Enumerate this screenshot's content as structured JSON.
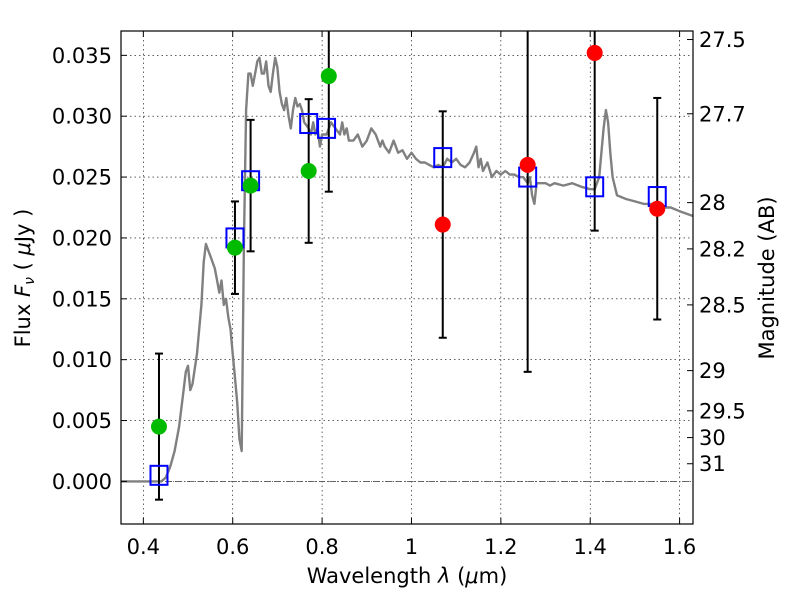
{
  "chart_data": {
    "type": "scatter",
    "xlabel_prefix": "Wavelength",
    "xlabel_symbol": "λ",
    "xlabel_unit_open": "(",
    "xlabel_unit_mu": "μ",
    "xlabel_unit_rest": "m)",
    "ylabel_prefix": "Flux",
    "ylabel_symbol": "F",
    "ylabel_subscript": "ν",
    "ylabel_unit_open": "(",
    "ylabel_unit_mu": "μ",
    "ylabel_unit_rest": "Jy )",
    "y2label": "Magnitude (AB)",
    "xlim": [
      0.35,
      1.63
    ],
    "ylim": [
      -0.0035,
      0.037
    ],
    "grid": true,
    "zero_line": true,
    "x_ticks": [
      {
        "value": 0.4,
        "label": "0.4"
      },
      {
        "value": 0.6,
        "label": "0.6"
      },
      {
        "value": 0.8,
        "label": "0.8"
      },
      {
        "value": 1.0,
        "label": "1"
      },
      {
        "value": 1.2,
        "label": "1.2"
      },
      {
        "value": 1.4,
        "label": "1.4"
      },
      {
        "value": 1.6,
        "label": "1.6"
      }
    ],
    "y_ticks": [
      {
        "value": 0.0,
        "label": "0.000"
      },
      {
        "value": 0.005,
        "label": "0.005"
      },
      {
        "value": 0.01,
        "label": "0.010"
      },
      {
        "value": 0.015,
        "label": "0.015"
      },
      {
        "value": 0.02,
        "label": "0.020"
      },
      {
        "value": 0.025,
        "label": "0.025"
      },
      {
        "value": 0.03,
        "label": "0.030"
      },
      {
        "value": 0.035,
        "label": "0.035"
      }
    ],
    "mag_ticks": [
      {
        "label": "27.5",
        "flux": 0.0363
      },
      {
        "label": "27.7",
        "flux": 0.0302
      },
      {
        "label": "28",
        "flux": 0.0229
      },
      {
        "label": "28.2",
        "flux": 0.0191
      },
      {
        "label": "28.5",
        "flux": 0.0145
      },
      {
        "label": "29",
        "flux": 0.0091
      },
      {
        "label": "29.5",
        "flux": 0.0058
      },
      {
        "label": "30",
        "flux": 0.0036
      },
      {
        "label": "31",
        "flux": 0.00145
      }
    ],
    "model_spectrum": {
      "color": "#808080",
      "points": [
        [
          0.35,
          0.0
        ],
        [
          0.44,
          0.0
        ],
        [
          0.45,
          0.0003
        ],
        [
          0.46,
          0.0012
        ],
        [
          0.47,
          0.0025
        ],
        [
          0.48,
          0.0045
        ],
        [
          0.49,
          0.0075
        ],
        [
          0.495,
          0.009
        ],
        [
          0.5,
          0.0095
        ],
        [
          0.505,
          0.0075
        ],
        [
          0.51,
          0.008
        ],
        [
          0.52,
          0.0105
        ],
        [
          0.53,
          0.0145
        ],
        [
          0.535,
          0.018
        ],
        [
          0.54,
          0.0195
        ],
        [
          0.55,
          0.0185
        ],
        [
          0.56,
          0.0175
        ],
        [
          0.565,
          0.0165
        ],
        [
          0.57,
          0.0155
        ],
        [
          0.575,
          0.0165
        ],
        [
          0.58,
          0.0145
        ],
        [
          0.585,
          0.015
        ],
        [
          0.59,
          0.0135
        ],
        [
          0.595,
          0.0125
        ],
        [
          0.6,
          0.0105
        ],
        [
          0.605,
          0.0085
        ],
        [
          0.61,
          0.0065
        ],
        [
          0.615,
          0.0035
        ],
        [
          0.62,
          0.0025
        ],
        [
          0.625,
          0.0195
        ],
        [
          0.63,
          0.0305
        ],
        [
          0.635,
          0.0335
        ],
        [
          0.64,
          0.0335
        ],
        [
          0.645,
          0.0325
        ],
        [
          0.65,
          0.0335
        ],
        [
          0.655,
          0.0345
        ],
        [
          0.66,
          0.0348
        ],
        [
          0.665,
          0.0335
        ],
        [
          0.67,
          0.0335
        ],
        [
          0.675,
          0.0345
        ],
        [
          0.68,
          0.0325
        ],
        [
          0.685,
          0.032
        ],
        [
          0.69,
          0.0335
        ],
        [
          0.695,
          0.0348
        ],
        [
          0.7,
          0.034
        ],
        [
          0.705,
          0.032
        ],
        [
          0.71,
          0.031
        ],
        [
          0.715,
          0.0305
        ],
        [
          0.72,
          0.0315
        ],
        [
          0.725,
          0.03
        ],
        [
          0.73,
          0.029
        ],
        [
          0.735,
          0.0305
        ],
        [
          0.74,
          0.0315
        ],
        [
          0.745,
          0.0308
        ],
        [
          0.75,
          0.031
        ],
        [
          0.755,
          0.0305
        ],
        [
          0.76,
          0.0295
        ],
        [
          0.77,
          0.029
        ],
        [
          0.775,
          0.0285
        ],
        [
          0.78,
          0.0295
        ],
        [
          0.785,
          0.0285
        ],
        [
          0.79,
          0.029
        ],
        [
          0.795,
          0.0275
        ],
        [
          0.8,
          0.0285
        ],
        [
          0.81,
          0.0285
        ],
        [
          0.82,
          0.0295
        ],
        [
          0.83,
          0.029
        ],
        [
          0.84,
          0.0285
        ],
        [
          0.845,
          0.0295
        ],
        [
          0.85,
          0.0285
        ],
        [
          0.855,
          0.029
        ],
        [
          0.86,
          0.028
        ],
        [
          0.87,
          0.028
        ],
        [
          0.88,
          0.0285
        ],
        [
          0.89,
          0.0275
        ],
        [
          0.9,
          0.028
        ],
        [
          0.91,
          0.029
        ],
        [
          0.92,
          0.0285
        ],
        [
          0.93,
          0.0275
        ],
        [
          0.935,
          0.028
        ],
        [
          0.94,
          0.0275
        ],
        [
          0.95,
          0.027
        ],
        [
          0.96,
          0.028
        ],
        [
          0.97,
          0.027
        ],
        [
          0.98,
          0.0272
        ],
        [
          0.99,
          0.0265
        ],
        [
          1.0,
          0.027
        ],
        [
          1.01,
          0.0265
        ],
        [
          1.02,
          0.0262
        ],
        [
          1.03,
          0.0262
        ],
        [
          1.04,
          0.026
        ],
        [
          1.05,
          0.0258
        ],
        [
          1.06,
          0.026
        ],
        [
          1.07,
          0.0258
        ],
        [
          1.08,
          0.0265
        ],
        [
          1.09,
          0.0262
        ],
        [
          1.1,
          0.0265
        ],
        [
          1.11,
          0.026
        ],
        [
          1.12,
          0.0258
        ],
        [
          1.13,
          0.0262
        ],
        [
          1.14,
          0.027
        ],
        [
          1.145,
          0.0275
        ],
        [
          1.15,
          0.0258
        ],
        [
          1.155,
          0.0265
        ],
        [
          1.16,
          0.0255
        ],
        [
          1.17,
          0.0262
        ],
        [
          1.18,
          0.025
        ],
        [
          1.19,
          0.0255
        ],
        [
          1.2,
          0.0252
        ],
        [
          1.21,
          0.0255
        ],
        [
          1.22,
          0.0252
        ],
        [
          1.23,
          0.0252
        ],
        [
          1.24,
          0.025
        ],
        [
          1.25,
          0.025
        ],
        [
          1.26,
          0.0245
        ],
        [
          1.265,
          0.025
        ],
        [
          1.27,
          0.0235
        ],
        [
          1.275,
          0.0228
        ],
        [
          1.28,
          0.0245
        ],
        [
          1.29,
          0.0245
        ],
        [
          1.3,
          0.0245
        ],
        [
          1.31,
          0.0243
        ],
        [
          1.32,
          0.0245
        ],
        [
          1.34,
          0.0243
        ],
        [
          1.36,
          0.0245
        ],
        [
          1.38,
          0.0242
        ],
        [
          1.4,
          0.024
        ],
        [
          1.41,
          0.024
        ],
        [
          1.42,
          0.025
        ],
        [
          1.425,
          0.027
        ],
        [
          1.43,
          0.029
        ],
        [
          1.435,
          0.0305
        ],
        [
          1.44,
          0.0295
        ],
        [
          1.445,
          0.027
        ],
        [
          1.45,
          0.025
        ],
        [
          1.46,
          0.0235
        ],
        [
          1.48,
          0.0232
        ],
        [
          1.5,
          0.023
        ],
        [
          1.52,
          0.0228
        ],
        [
          1.54,
          0.0228
        ],
        [
          1.56,
          0.0225
        ],
        [
          1.58,
          0.0225
        ],
        [
          1.6,
          0.0222
        ],
        [
          1.63,
          0.0218
        ]
      ]
    },
    "model_photometry": {
      "color": "#0000ff",
      "points": [
        [
          0.435,
          0.0005
        ],
        [
          0.605,
          0.02
        ],
        [
          0.64,
          0.0247
        ],
        [
          0.77,
          0.0294
        ],
        [
          0.81,
          0.029
        ],
        [
          1.07,
          0.0266
        ],
        [
          1.26,
          0.025
        ],
        [
          1.41,
          0.0242
        ],
        [
          1.55,
          0.0234
        ]
      ]
    },
    "detections": {
      "color": "#00bb00",
      "points": [
        [
          0.435,
          0.0045,
          0.006
        ],
        [
          0.605,
          0.0192,
          0.0038
        ],
        [
          0.64,
          0.0243,
          0.0054
        ],
        [
          0.77,
          0.0255,
          0.0059
        ],
        [
          0.815,
          0.0333,
          0.0095
        ]
      ]
    },
    "upper_limits": {
      "color": "#ff0000",
      "points": [
        [
          1.07,
          0.0211,
          0.0093
        ],
        [
          1.26,
          0.026,
          0.017
        ],
        [
          1.41,
          0.0352,
          0.0146
        ],
        [
          1.55,
          0.0224,
          0.0091
        ]
      ]
    }
  }
}
